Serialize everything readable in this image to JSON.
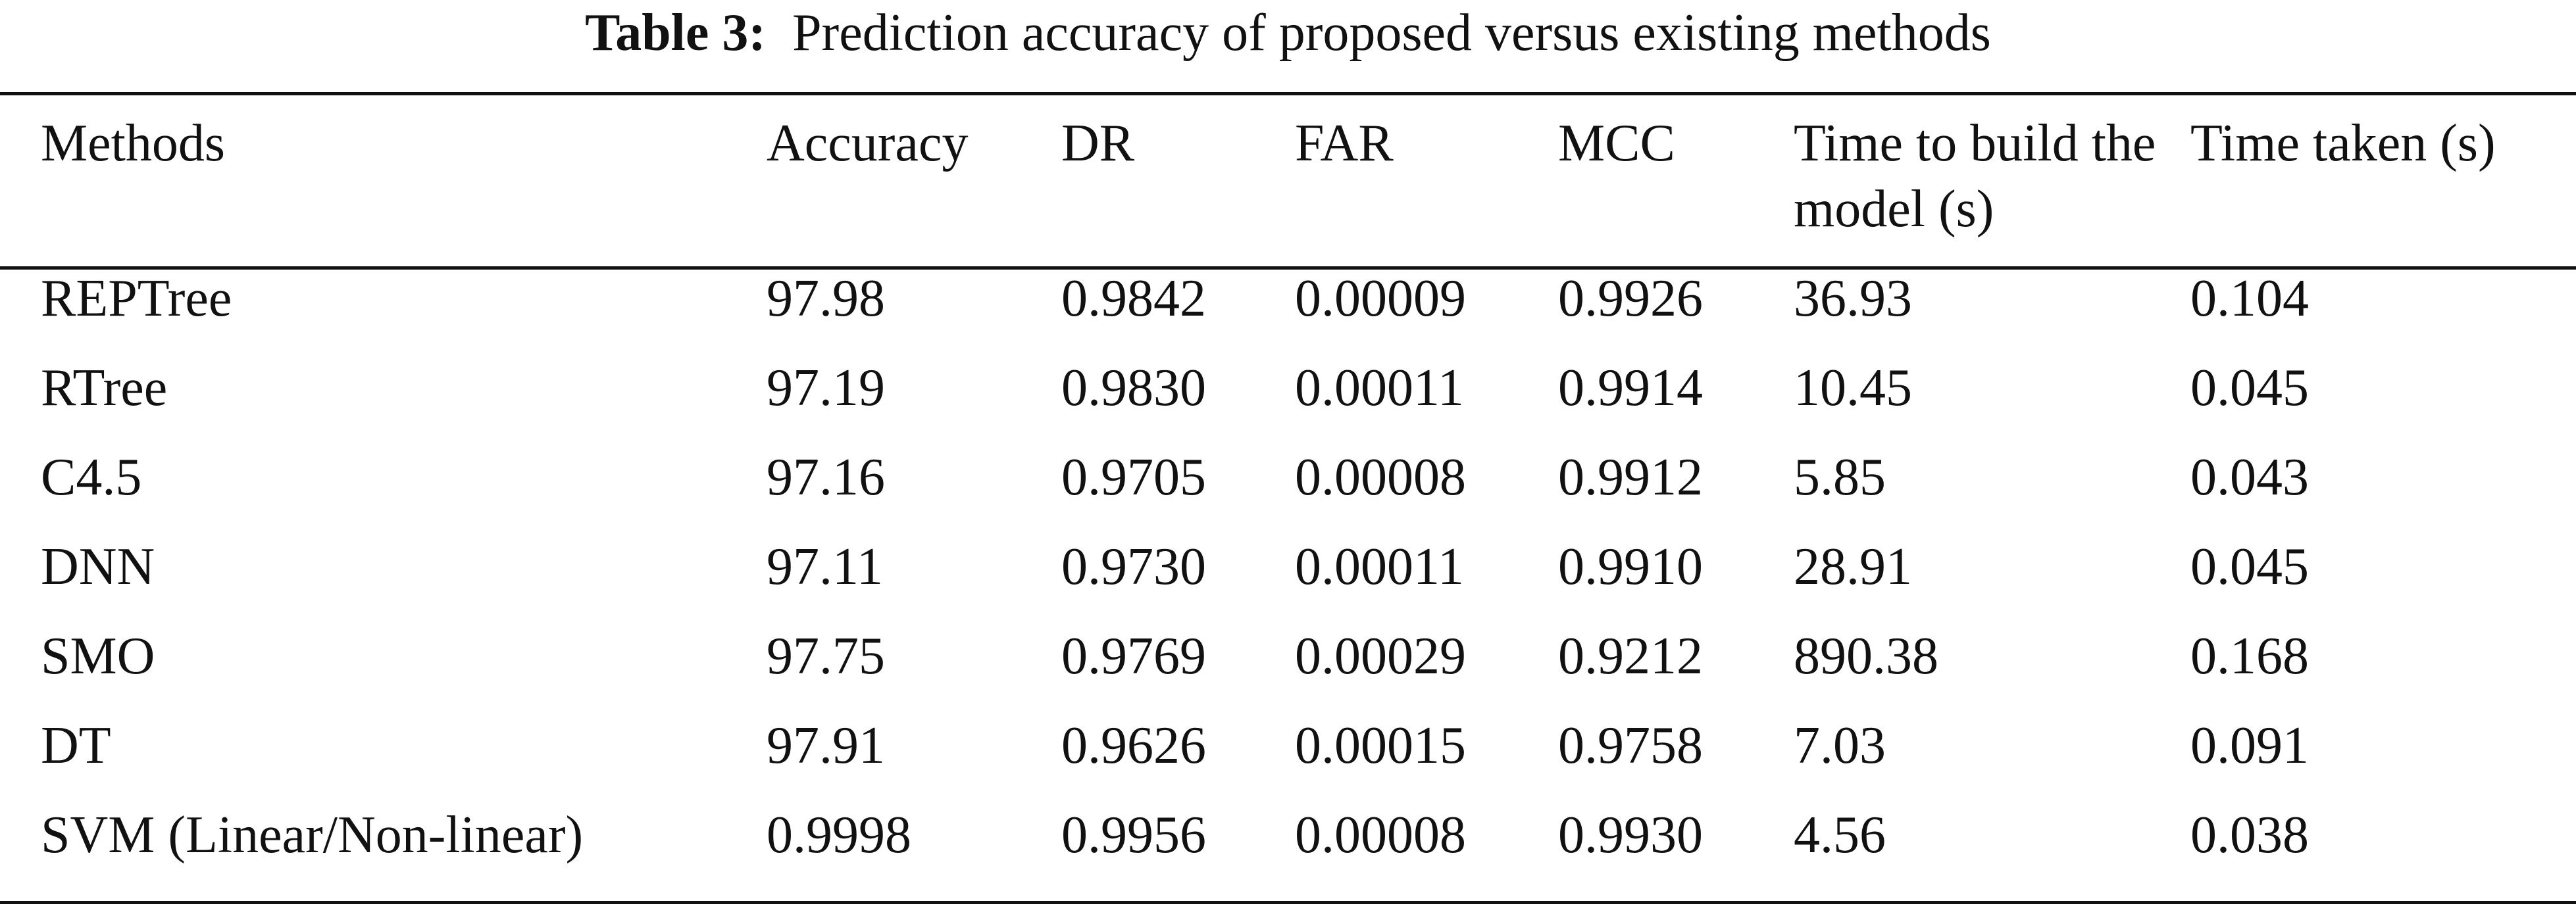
{
  "caption": {
    "label": "Table 3:",
    "text": "Prediction accuracy of proposed versus existing methods"
  },
  "table": {
    "headers": [
      "Methods",
      "Accuracy",
      "DR",
      "FAR",
      "MCC",
      "Time to build the model (s)",
      "Time taken (s)"
    ],
    "rows": [
      [
        "REPTree",
        "97.98",
        "0.9842",
        "0.00009",
        "0.9926",
        "36.93",
        "0.104"
      ],
      [
        "RTree",
        "97.19",
        "0.9830",
        "0.00011",
        "0.9914",
        "10.45",
        "0.045"
      ],
      [
        "C4.5",
        "97.16",
        "0.9705",
        "0.00008",
        "0.9912",
        "5.85",
        "0.043"
      ],
      [
        "DNN",
        "97.11",
        "0.9730",
        "0.00011",
        "0.9910",
        "28.91",
        "0.045"
      ],
      [
        "SMO",
        "97.75",
        "0.9769",
        "0.00029",
        "0.9212",
        "890.38",
        "0.168"
      ],
      [
        "DT",
        "97.91",
        "0.9626",
        "0.00015",
        "0.9758",
        "7.03",
        "0.091"
      ],
      [
        "SVM (Linear/Non-linear)",
        "0.9998",
        "0.9956",
        "0.00008",
        "0.9930",
        "4.56",
        "0.038"
      ]
    ]
  }
}
